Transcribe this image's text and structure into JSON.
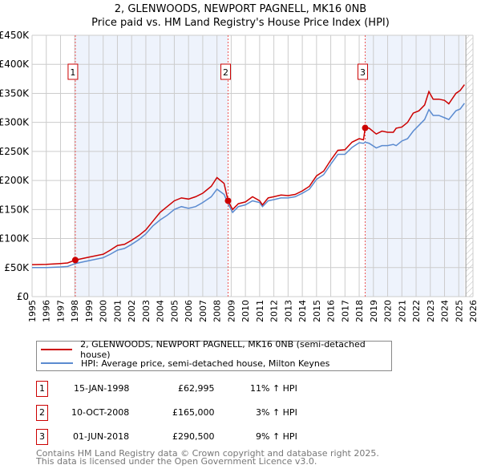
{
  "chart_data": {
    "type": "line",
    "title": "2, GLENWOODS, NEWPORT PAGNELL, MK16 0NB",
    "subtitle": "Price paid vs. HM Land Registry's House Price Index (HPI)",
    "xlim": [
      1995,
      2026
    ],
    "ylim": [
      0,
      450000
    ],
    "y_ticks": [
      {
        "v": 0,
        "label": "£0"
      },
      {
        "v": 50000,
        "label": "£50K"
      },
      {
        "v": 100000,
        "label": "£100K"
      },
      {
        "v": 150000,
        "label": "£150K"
      },
      {
        "v": 200000,
        "label": "£200K"
      },
      {
        "v": 250000,
        "label": "£250K"
      },
      {
        "v": 300000,
        "label": "£300K"
      },
      {
        "v": 350000,
        "label": "£350K"
      },
      {
        "v": 400000,
        "label": "£400K"
      },
      {
        "v": 450000,
        "label": "£450K"
      }
    ],
    "x_ticks": [
      "1995",
      "1996",
      "1997",
      "1998",
      "1999",
      "2000",
      "2001",
      "2002",
      "2003",
      "2004",
      "2005",
      "2006",
      "2007",
      "2008",
      "2009",
      "2010",
      "2011",
      "2012",
      "2013",
      "2014",
      "2015",
      "2016",
      "2017",
      "2018",
      "2019",
      "2020",
      "2021",
      "2022",
      "2023",
      "2024",
      "2025",
      "2026"
    ],
    "grid": true,
    "shaded_ranges": [
      [
        1998.04,
        2008.78
      ],
      [
        2018.42,
        2025.4
      ]
    ],
    "forecast_hatch_from": 2025.5,
    "series": [
      {
        "name": "2, GLENWOODS, NEWPORT PAGNELL, MK16 0NB (semi-detached house)",
        "color": "#cc0000",
        "x": [
          1995,
          1996,
          1997,
          1997.5,
          1998.04,
          1999,
          2000,
          2000.5,
          2001,
          2001.5,
          2002,
          2002.5,
          2003,
          2003.5,
          2004,
          2004.5,
          2005,
          2005.5,
          2006,
          2006.5,
          2007,
          2007.6,
          2008,
          2008.5,
          2008.78,
          2009.1,
          2009.5,
          2010,
          2010.5,
          2011,
          2011.2,
          2011.6,
          2012,
          2012.5,
          2013,
          2013.5,
          2014,
          2014.5,
          2015,
          2015.5,
          2016,
          2016.5,
          2017,
          2017.5,
          2018,
          2018.3,
          2018.42,
          2018.7,
          2019.2,
          2019.6,
          2020,
          2020.4,
          2020.6,
          2021,
          2021.4,
          2021.8,
          2022.2,
          2022.6,
          2022.9,
          2023.2,
          2023.6,
          2024,
          2024.3,
          2024.8,
          2025.1,
          2025.4
        ],
        "y": [
          55000,
          55500,
          57000,
          58000,
          62995,
          68000,
          73000,
          80000,
          88000,
          90000,
          97000,
          105000,
          115000,
          130000,
          145000,
          155000,
          165000,
          170000,
          168000,
          172000,
          178000,
          190000,
          205000,
          195000,
          165000,
          150000,
          160000,
          163000,
          172000,
          165000,
          158000,
          170000,
          172000,
          175000,
          174000,
          176000,
          182000,
          190000,
          208000,
          216000,
          235000,
          252000,
          253000,
          266000,
          272000,
          270000,
          290500,
          290000,
          280000,
          285000,
          283000,
          283000,
          290000,
          292000,
          300000,
          316000,
          320000,
          330000,
          353000,
          340000,
          340000,
          338000,
          332000,
          350000,
          355000,
          365000
        ]
      },
      {
        "name": "HPI: Average price, semi-detached house, Milton Keynes",
        "color": "#5b8bd0",
        "x": [
          1995,
          1996,
          1997,
          1997.5,
          1998.04,
          1999,
          2000,
          2000.5,
          2001,
          2001.5,
          2002,
          2002.5,
          2003,
          2003.5,
          2004,
          2004.5,
          2005,
          2005.5,
          2006,
          2006.5,
          2007,
          2007.6,
          2008,
          2008.5,
          2008.78,
          2009.1,
          2009.5,
          2010,
          2010.5,
          2011,
          2011.2,
          2011.6,
          2012,
          2012.5,
          2013,
          2013.5,
          2014,
          2014.5,
          2015,
          2015.5,
          2016,
          2016.5,
          2017,
          2017.5,
          2018,
          2018.3,
          2018.42,
          2018.7,
          2019.2,
          2019.6,
          2020,
          2020.4,
          2020.6,
          2021,
          2021.4,
          2021.8,
          2022.2,
          2022.6,
          2022.9,
          2023.2,
          2023.6,
          2024,
          2024.3,
          2024.8,
          2025.1,
          2025.4
        ],
        "y": [
          50000,
          50000,
          51000,
          52000,
          57000,
          62000,
          67000,
          73000,
          80000,
          83000,
          90000,
          98000,
          108000,
          122000,
          132000,
          140000,
          150000,
          155000,
          152000,
          155000,
          162000,
          172000,
          185000,
          176000,
          160000,
          145000,
          155000,
          158000,
          165000,
          162000,
          155000,
          165000,
          167000,
          170000,
          170000,
          172000,
          178000,
          185000,
          202000,
          210000,
          228000,
          245000,
          245000,
          257000,
          265000,
          264000,
          266000,
          264000,
          256000,
          260000,
          260000,
          262000,
          260000,
          268000,
          272000,
          285000,
          295000,
          305000,
          322000,
          312000,
          312000,
          308000,
          305000,
          320000,
          323000,
          333000
        ]
      }
    ],
    "sales": [
      {
        "n": "1",
        "x": 1998.04,
        "y": 62995
      },
      {
        "n": "2",
        "x": 2008.78,
        "y": 165000
      },
      {
        "n": "3",
        "x": 2018.42,
        "y": 290500
      }
    ]
  },
  "legend": {
    "red_label": "2, GLENWOODS, NEWPORT PAGNELL, MK16 0NB (semi-detached house)",
    "blue_label": "HPI: Average price, semi-detached house, Milton Keynes"
  },
  "transactions": [
    {
      "n": "1",
      "date": "15-JAN-1998",
      "price": "£62,995",
      "hpi": "11% ↑ HPI"
    },
    {
      "n": "2",
      "date": "10-OCT-2008",
      "price": "£165,000",
      "hpi": "3% ↑ HPI"
    },
    {
      "n": "3",
      "date": "01-JUN-2018",
      "price": "£290,500",
      "hpi": "9% ↑ HPI"
    }
  ],
  "footer": {
    "line1": "Contains HM Land Registry data © Crown copyright and database right 2025.",
    "line2": "This data is licensed under the Open Government Licence v3.0."
  }
}
